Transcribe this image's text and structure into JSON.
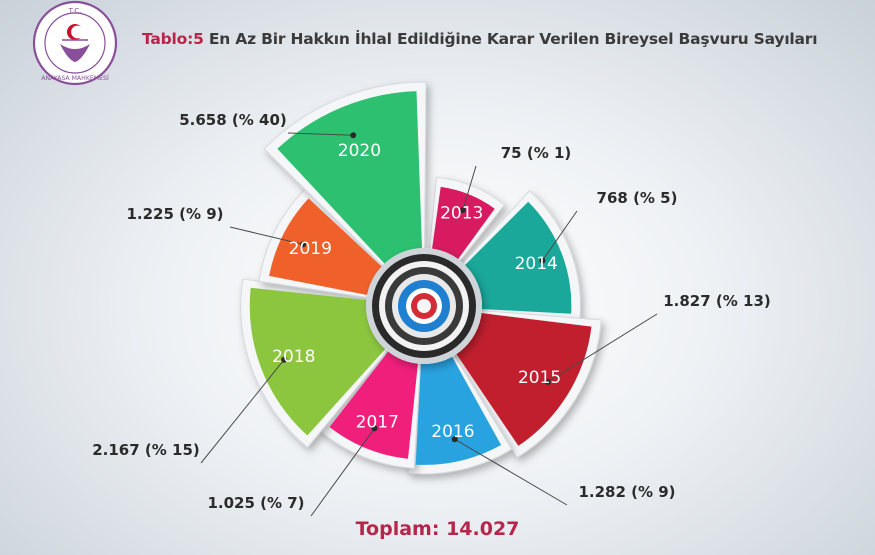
{
  "title": {
    "prefix": "Tablo:5",
    "text": " En Az Bir Hakkın İhlal Edildiğine Karar Verilen Bireysel Başvuru Sayıları"
  },
  "logo": {
    "top_text": "T.C.",
    "bottom_text": "ANAYASA MAHKEMESİ"
  },
  "total": {
    "label": "Toplam:",
    "value": "14.027"
  },
  "chart_data": {
    "type": "pie",
    "variant": "rose",
    "title": "En Az Bir Hakkın İhlal Edildiğine Karar Verilen Bireysel Başvuru Sayıları",
    "total": 14027,
    "categories": [
      "2013",
      "2014",
      "2015",
      "2016",
      "2017",
      "2018",
      "2019",
      "2020"
    ],
    "values": [
      75,
      768,
      1827,
      1282,
      1025,
      2167,
      1225,
      5658
    ],
    "value_labels": [
      "75 (% 1)",
      "768 (% 5)",
      "1.827 (% 13)",
      "1.282 (% 9)",
      "1.025 (% 7)",
      "2.167 (% 15)",
      "1.225 (% 9)",
      "5.658 (% 40)"
    ],
    "colors": [
      "#d81b60",
      "#1aa89b",
      "#c21f2e",
      "#29a3e0",
      "#ef1f7b",
      "#8cc63f",
      "#f0602a",
      "#2cc070"
    ],
    "legend": "none"
  }
}
